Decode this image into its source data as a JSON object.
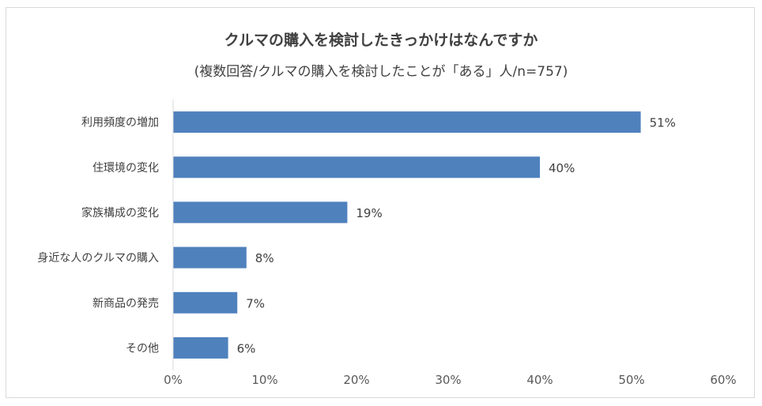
{
  "chart_data": {
    "type": "bar",
    "orientation": "horizontal",
    "title": "クルマの購入を検討したきっかけはなんですか",
    "subtitle": "(複数回答/クルマの購入を検討したことが「ある」人/n=757)",
    "categories": [
      "利用頻度の増加",
      "住環境の変化",
      "家族構成の変化",
      "身近な人のクルマの購入",
      "新商品の発売",
      "その他"
    ],
    "values": [
      51,
      40,
      19,
      8,
      7,
      6
    ],
    "data_labels": [
      "51%",
      "40%",
      "19%",
      "8%",
      "7%",
      "6%"
    ],
    "xlim": [
      0,
      60
    ],
    "ticks": [
      0,
      10,
      20,
      30,
      40,
      50,
      60
    ],
    "tick_labels": [
      "0%",
      "10%",
      "20%",
      "30%",
      "40%",
      "50%",
      "60%"
    ],
    "xlabel": "",
    "ylabel": "",
    "grid": false,
    "legend": "none",
    "bar_color": "#4f81bd"
  }
}
